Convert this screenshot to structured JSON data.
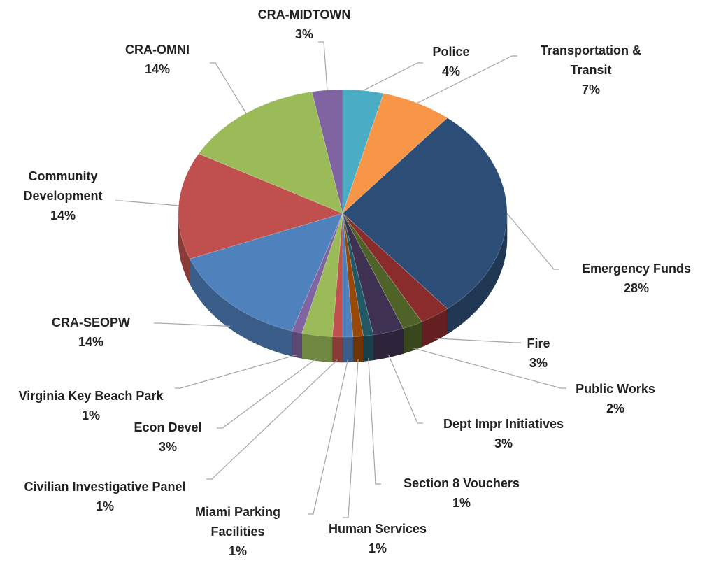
{
  "chart_data": {
    "type": "pie",
    "categories": [
      "Police",
      "Transportation & Transit",
      "Emergency Funds",
      "Fire",
      "Public Works",
      "Dept Impr Initiatives",
      "Section 8 Vouchers",
      "Human Services",
      "Miami Parking Facilities",
      "Civilian Investigative Panel",
      "Econ Devel",
      "Virginia Key Beach Park",
      "CRA-SEOPW",
      "Community Development",
      "CRA-OMNI",
      "CRA-MIDTOWN"
    ],
    "values": [
      4,
      7,
      28,
      3,
      2,
      3,
      1,
      1,
      1,
      1,
      3,
      1,
      14,
      14,
      14,
      3
    ],
    "value_labels": [
      "4%",
      "7%",
      "28%",
      "3%",
      "2%",
      "3%",
      "1%",
      "1%",
      "1%",
      "1%",
      "3%",
      "1%",
      "14%",
      "14%",
      "14%",
      "3%"
    ],
    "colors": [
      "#4bacc6",
      "#f79646",
      "#2c4d75",
      "#8b2c2c",
      "#4f6228",
      "#3f3151",
      "#215967",
      "#984807",
      "#4f81bd",
      "#c0504d",
      "#9bbb59",
      "#8064a2",
      "#4f81bd",
      "#c0504d",
      "#9bbb59",
      "#8064a2"
    ]
  }
}
